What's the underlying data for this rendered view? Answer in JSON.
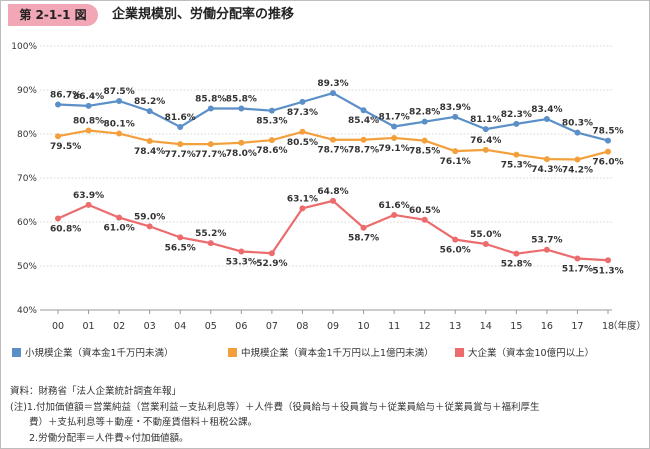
{
  "header": {
    "badge": "第 2-1-1 図",
    "title": "企業規模別、労働分配率の推移"
  },
  "colors": {
    "small": "#5b8fc7",
    "medium": "#f3a03c",
    "large": "#ec6c6e",
    "badge": "#f2a7b6"
  },
  "chart_data": {
    "type": "line",
    "title": "企業規模別、労働分配率の推移",
    "categories": [
      "00",
      "01",
      "02",
      "03",
      "04",
      "05",
      "06",
      "07",
      "08",
      "09",
      "10",
      "11",
      "12",
      "13",
      "14",
      "15",
      "16",
      "17",
      "18"
    ],
    "x_unit": "（年度）",
    "ylim": [
      40,
      100
    ],
    "y_ticks": [
      "40%",
      "50%",
      "60%",
      "70%",
      "80%",
      "90%",
      "100%"
    ],
    "grid": "horizontal dotted",
    "legend": "bottom",
    "series": [
      {
        "name": "小規模企業（資本金1千万円未満）",
        "color": "#5b8fc7",
        "values": [
          86.7,
          86.4,
          87.5,
          85.2,
          81.6,
          85.8,
          85.8,
          85.3,
          87.3,
          89.3,
          85.4,
          81.7,
          82.8,
          83.9,
          81.1,
          82.3,
          83.4,
          80.3,
          78.5
        ],
        "labels": [
          "86.7%",
          "86.4%",
          "87.5%",
          "85.2%",
          "81.6%",
          "85.8%",
          "85.8%",
          "85.3%",
          "87.3%",
          "89.3%",
          "85.4%",
          "81.7%",
          "82.8%",
          "83.9%",
          "81.1%",
          "82.3%",
          "83.4%",
          "80.3%",
          "78.5%"
        ]
      },
      {
        "name": "中規模企業（資本金1千万円以上1億円未満）",
        "color": "#f3a03c",
        "values": [
          79.5,
          80.8,
          80.1,
          78.4,
          77.7,
          77.7,
          78.0,
          78.6,
          80.5,
          78.7,
          78.7,
          79.1,
          78.5,
          76.1,
          76.4,
          75.3,
          74.3,
          74.2,
          76.0
        ],
        "labels": [
          "79.5%",
          "80.8%",
          "80.1%",
          "78.4%",
          "77.7%",
          "77.7%",
          "78.0%",
          "78.6%",
          "80.5%",
          "78.7%",
          "78.7%",
          "79.1%",
          "78.5%",
          "76.1%",
          "76.4%",
          "75.3%",
          "74.3%",
          "74.2%",
          "76.0%"
        ]
      },
      {
        "name": "大企業（資本金10億円以上）",
        "color": "#ec6c6e",
        "values": [
          60.8,
          63.9,
          61.0,
          59.0,
          56.5,
          55.2,
          53.3,
          52.9,
          63.1,
          64.8,
          58.7,
          61.6,
          60.5,
          56.0,
          55.0,
          52.8,
          53.7,
          51.7,
          51.3
        ],
        "labels": [
          "60.8%",
          "63.9%",
          "61.0%",
          "59.0%",
          "56.5%",
          "55.2%",
          "53.3%",
          "52.9%",
          "63.1%",
          "64.8%",
          "58.7%",
          "61.6%",
          "60.5%",
          "56.0%",
          "55.0%",
          "52.8%",
          "53.7%",
          "51.7%",
          "51.3%"
        ]
      }
    ]
  },
  "notes": [
    "資料：財務省「法人企業統計調査年報」",
    "(注)1.付加価値額＝営業純益（営業利益－支払利息等）＋人件費（役員給与＋役員賞与＋従業員給与＋従業員賞与＋福利厚生",
    "　　費）＋支払利息等＋動産・不動産賃借料＋租税公課。",
    "　　2.労働分配率＝人件費÷付加価値額。"
  ]
}
